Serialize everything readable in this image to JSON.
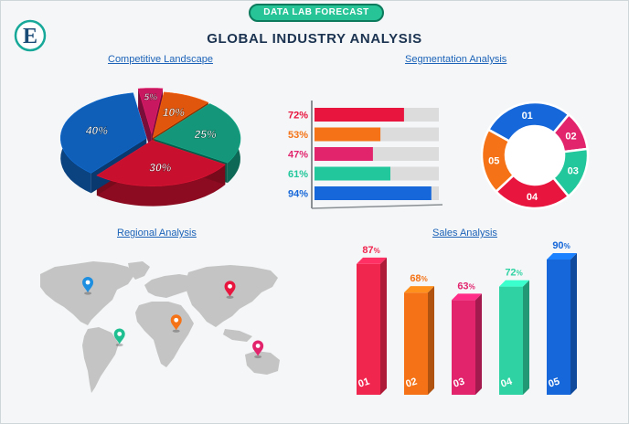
{
  "badge": "DATA LAB FORECAST",
  "title": "GLOBAL INDUSTRY ANALYSIS",
  "logo": {
    "letter": "E",
    "colors": {
      "ring": "#17a89a",
      "letter": "#1b4b77"
    }
  },
  "sections": {
    "competitive": "Competitive Landscape",
    "segmentation": "Segmentation Analysis",
    "regional": "Regional Analysis",
    "sales": "Sales Analysis"
  },
  "chart_data": [
    {
      "type": "pie",
      "title": "Competitive Landscape",
      "slices": [
        {
          "label": "5%",
          "value": 5,
          "color": "#c8185f"
        },
        {
          "label": "10%",
          "value": 10,
          "color": "#e0560d"
        },
        {
          "label": "25%",
          "value": 25,
          "color": "#139679"
        },
        {
          "label": "30%",
          "value": 30,
          "color": "#c8102e"
        },
        {
          "label": "40%",
          "value": 40,
          "color": "#0f5fb8"
        }
      ]
    },
    {
      "type": "bar",
      "orientation": "horizontal",
      "title": "Segmentation Analysis",
      "categories": [
        "72%",
        "53%",
        "47%",
        "61%",
        "94%"
      ],
      "values": [
        72,
        53,
        47,
        61,
        94
      ],
      "xlim": [
        0,
        100
      ],
      "colors": [
        "#e8153f",
        "#f57316",
        "#e2246d",
        "#22c79b",
        "#1667d9"
      ]
    },
    {
      "type": "pie",
      "variant": "donut",
      "title": "Segmentation Analysis",
      "slices": [
        {
          "label": "01",
          "value": 28,
          "color": "#1667d9"
        },
        {
          "label": "02",
          "value": 12,
          "color": "#e2246d"
        },
        {
          "label": "03",
          "value": 16,
          "color": "#22c79b"
        },
        {
          "label": "04",
          "value": 24,
          "color": "#e8153f"
        },
        {
          "label": "05",
          "value": 20,
          "color": "#f57316"
        }
      ]
    },
    {
      "type": "bar",
      "title": "Sales Analysis",
      "categories": [
        "01",
        "02",
        "03",
        "04",
        "05"
      ],
      "values": [
        87,
        68,
        63,
        72,
        90
      ],
      "value_labels": [
        "87",
        "68",
        "63",
        "72",
        "90"
      ],
      "unit": "%",
      "colors": [
        "#f0264f",
        "#f57316",
        "#e2246d",
        "#2fd3a3",
        "#1667d9"
      ]
    }
  ],
  "map": {
    "land_color": "#c4c4c4",
    "pins": [
      {
        "name": "north-america-pin",
        "color": "#1e8fe0",
        "lon": -98,
        "lat": 40
      },
      {
        "name": "south-america-pin",
        "color": "#1fbf92",
        "lon": -55,
        "lat": -12
      },
      {
        "name": "africa-pin",
        "color": "#f57316",
        "lon": 22,
        "lat": 2
      },
      {
        "name": "asia-pin",
        "color": "#e8153f",
        "lon": 95,
        "lat": 36
      },
      {
        "name": "australia-pin",
        "color": "#e2246d",
        "lon": 133,
        "lat": -24
      }
    ]
  }
}
